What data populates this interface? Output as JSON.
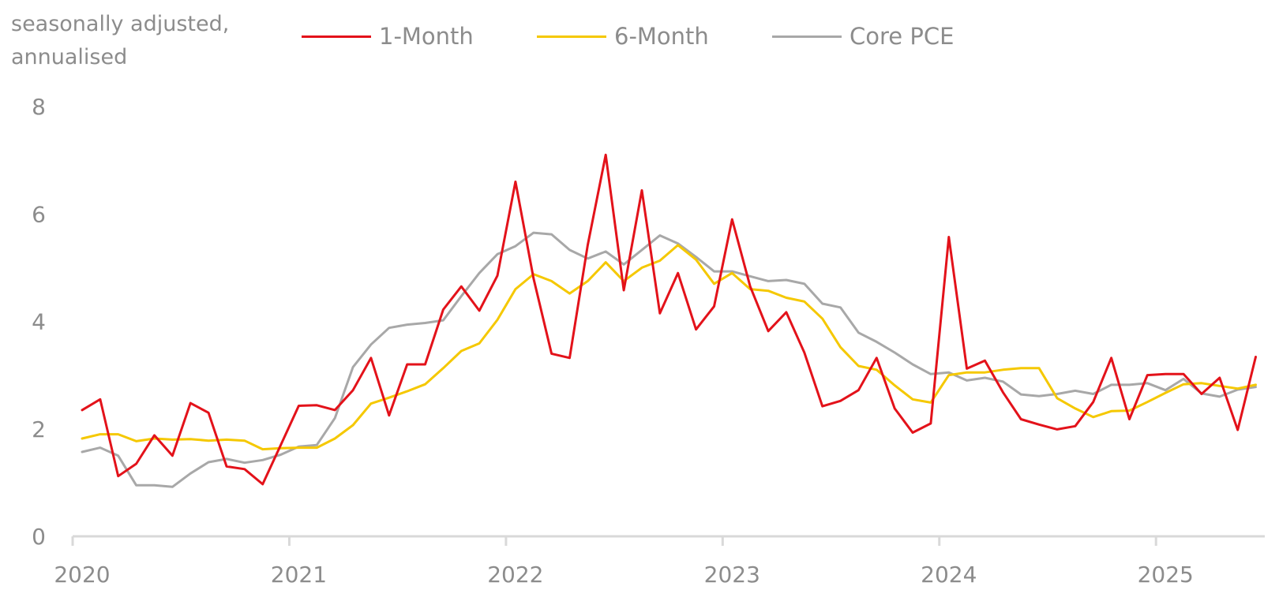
{
  "chart_data": {
    "type": "line",
    "title": "",
    "ylabel": "seasonally adjusted,\nannualised",
    "xlabel": "",
    "ylim": [
      0,
      8
    ],
    "yticks": [
      "0",
      "2",
      "4",
      "6",
      "8"
    ],
    "xticks": [
      "2020",
      "2021",
      "2022",
      "2023",
      "2024",
      "2025"
    ],
    "grid": false,
    "legend_position": "top",
    "x_start": "2020-01",
    "series": [
      {
        "name": "1-Month",
        "color": "#e3121a",
        "values": [
          2.35,
          2.55,
          1.12,
          1.35,
          1.88,
          1.5,
          2.48,
          2.3,
          1.3,
          1.25,
          0.97,
          1.7,
          2.43,
          2.44,
          2.35,
          2.72,
          3.32,
          2.25,
          3.2,
          3.2,
          4.22,
          4.65,
          4.2,
          4.85,
          6.6,
          4.8,
          3.4,
          3.32,
          5.42,
          7.1,
          4.58,
          6.44,
          4.15,
          4.9,
          3.85,
          4.28,
          5.9,
          4.65,
          3.82,
          4.17,
          3.42,
          2.42,
          2.52,
          2.72,
          3.32,
          2.38,
          1.93,
          2.1,
          5.57,
          3.12,
          3.27,
          2.68,
          2.18,
          2.08,
          1.99,
          2.05,
          2.5,
          3.32,
          2.18,
          3.0,
          3.02,
          3.02,
          2.65,
          2.95,
          1.98,
          3.34
        ]
      },
      {
        "name": "6-Month",
        "color": "#f5c800",
        "values": [
          1.82,
          1.9,
          1.9,
          1.77,
          1.82,
          1.8,
          1.81,
          1.78,
          1.8,
          1.78,
          1.62,
          1.64,
          1.65,
          1.65,
          1.82,
          2.07,
          2.47,
          2.58,
          2.7,
          2.83,
          3.13,
          3.45,
          3.59,
          4.03,
          4.6,
          4.88,
          4.75,
          4.52,
          4.75,
          5.1,
          4.75,
          5.0,
          5.13,
          5.42,
          5.15,
          4.7,
          4.9,
          4.6,
          4.57,
          4.44,
          4.37,
          4.05,
          3.52,
          3.17,
          3.1,
          2.81,
          2.55,
          2.49,
          3.0,
          3.05,
          3.05,
          3.1,
          3.13,
          3.13,
          2.57,
          2.38,
          2.22,
          2.33,
          2.34,
          2.5,
          2.67,
          2.83,
          2.85,
          2.8,
          2.75,
          2.82
        ]
      },
      {
        "name": "Core PCE",
        "color": "#a8a8a8",
        "values": [
          1.57,
          1.65,
          1.5,
          0.95,
          0.95,
          0.92,
          1.17,
          1.38,
          1.44,
          1.37,
          1.42,
          1.52,
          1.67,
          1.7,
          2.2,
          3.15,
          3.57,
          3.88,
          3.94,
          3.97,
          4.02,
          4.47,
          4.9,
          5.25,
          5.4,
          5.65,
          5.62,
          5.33,
          5.17,
          5.3,
          5.06,
          5.33,
          5.6,
          5.45,
          5.2,
          4.93,
          4.93,
          4.84,
          4.75,
          4.77,
          4.7,
          4.33,
          4.26,
          3.79,
          3.62,
          3.42,
          3.2,
          3.02,
          3.05,
          2.9,
          2.95,
          2.88,
          2.64,
          2.61,
          2.65,
          2.71,
          2.65,
          2.82,
          2.82,
          2.85,
          2.72,
          2.93,
          2.66,
          2.6,
          2.73,
          2.78
        ]
      }
    ]
  }
}
